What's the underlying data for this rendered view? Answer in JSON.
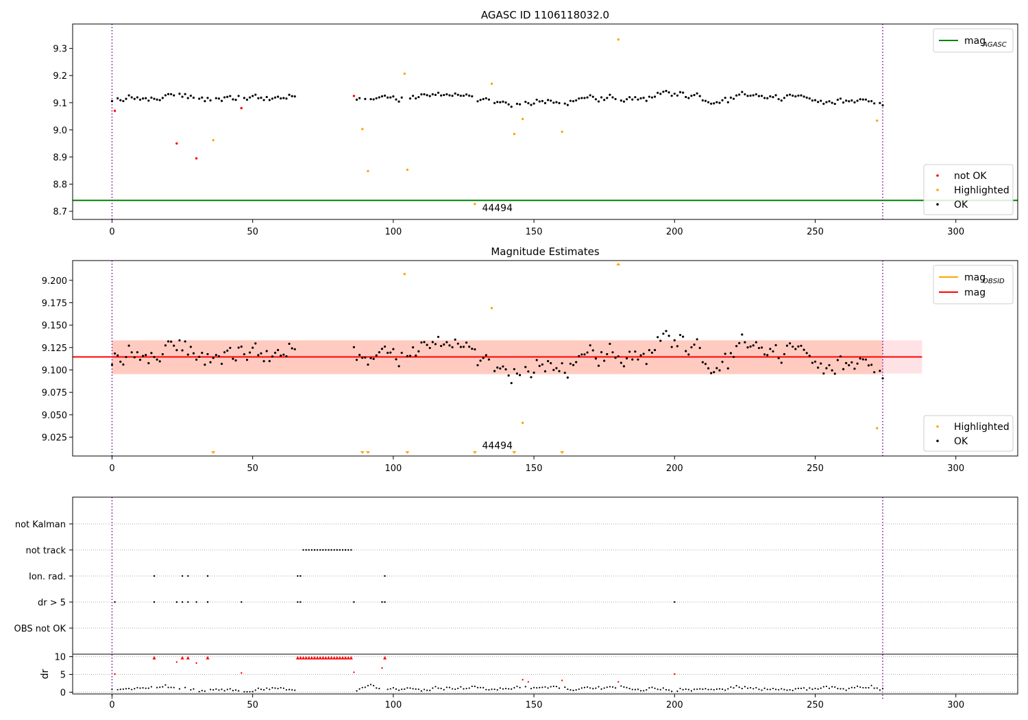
{
  "chart_data": [
    {
      "type": "scatter",
      "title": "AGASC ID 1106118032.0",
      "xlim": [
        -14,
        322
      ],
      "ylim": [
        8.67,
        9.39
      ],
      "xticks": [
        0,
        50,
        100,
        150,
        200,
        250,
        300
      ],
      "yticks": [
        8.7,
        8.8,
        8.9,
        9.0,
        9.1,
        9.2,
        9.3
      ],
      "ytick_decimals": 1,
      "vlines": [
        0,
        274
      ],
      "obsid_label": "44494",
      "obsid_label_pos": {
        "x": 137,
        "y": 8.7
      },
      "hlines": [
        {
          "name": "mag_AGASC",
          "legend": "mag",
          "legend_sub": "AGASC",
          "y": 8.74,
          "xmin": -14,
          "xmax": 322,
          "color": "#008000"
        }
      ],
      "legend_lines": [
        "mag_AGASC"
      ],
      "legend_points": [
        "not OK",
        "Highlighted",
        "OK"
      ],
      "ok_base": {
        "ranges": [
          [
            0,
            65
          ],
          [
            86,
            274
          ]
        ],
        "base": 9.115,
        "gaps": [
          [
            65,
            86
          ]
        ]
      },
      "series": [
        {
          "name": "not OK",
          "color": "#ff0000",
          "points": [
            [
              1,
              9.07
            ],
            [
              23,
              8.95
            ],
            [
              30,
              8.895
            ],
            [
              46,
              9.08
            ],
            [
              86,
              9.125
            ]
          ]
        },
        {
          "name": "Highlighted",
          "color": "#ffa500",
          "points": [
            [
              36,
              8.962
            ],
            [
              89,
              9.003
            ],
            [
              91,
              8.848
            ],
            [
              104,
              9.207
            ],
            [
              105,
              8.853
            ],
            [
              129,
              8.727
            ],
            [
              135,
              9.17
            ],
            [
              143,
              8.985
            ],
            [
              146,
              9.04
            ],
            [
              160,
              8.993
            ],
            [
              180,
              9.333
            ],
            [
              272,
              9.034
            ]
          ]
        },
        {
          "name": "OK",
          "color": "#000000",
          "points": []
        }
      ]
    },
    {
      "type": "scatter",
      "title": "Magnitude Estimates",
      "xlim": [
        -14,
        322
      ],
      "ylim": [
        9.004,
        9.222
      ],
      "xticks": [
        0,
        50,
        100,
        150,
        200,
        250,
        300
      ],
      "yticks": [
        9.025,
        9.05,
        9.075,
        9.1,
        9.125,
        9.15,
        9.175,
        9.2
      ],
      "ytick_decimals": 3,
      "vlines": [
        0,
        274
      ],
      "obsid_label": "44494",
      "obsid_label_pos": {
        "x": 137,
        "y": 9.012
      },
      "band_outer": {
        "x0": 0,
        "x1": 288,
        "y0": 9.096,
        "y1": 9.133,
        "color": "#ffb6c1"
      },
      "band_inner": {
        "x0": 0,
        "x1": 274,
        "y0": 9.095,
        "y1": 9.133,
        "color": "#ffa07a"
      },
      "hlines": [
        {
          "name": "mag_OBSID",
          "legend": "mag",
          "legend_sub": "OBSID",
          "y": 9.1145,
          "xmin": 0,
          "xmax": 274,
          "color": "#ffa500"
        },
        {
          "name": "mag",
          "legend": "mag",
          "legend_sub": "",
          "y": 9.1145,
          "xmin": -14,
          "xmax": 288,
          "color": "#ff0000"
        }
      ],
      "legend_lines": [
        "mag_OBSID",
        "mag"
      ],
      "legend_points": [
        "Highlighted",
        "OK"
      ],
      "ok_base": {
        "ranges": [
          [
            0,
            65
          ],
          [
            86,
            274
          ]
        ],
        "base": 9.115,
        "gaps": [
          [
            65,
            86
          ]
        ]
      },
      "series": [
        {
          "name": "Highlighted",
          "color": "#ffa500",
          "points": [
            [
              104,
              9.207
            ],
            [
              135,
              9.169
            ],
            [
              146,
              9.041
            ],
            [
              272,
              9.035
            ]
          ]
        },
        {
          "name": "OK",
          "color": "#000000",
          "points": []
        }
      ],
      "off_low": [
        36,
        89,
        91,
        105,
        129,
        143,
        160
      ],
      "off_high": [
        180
      ]
    },
    {
      "type": "scatter",
      "title": "",
      "xlim": [
        -14,
        322
      ],
      "categories": [
        "not Kalman",
        "not track",
        "Ion. rad.",
        "dr > 5",
        "OBS not OK"
      ],
      "vlines": [
        0,
        274
      ],
      "flags": {
        "not track": [
          68,
          69,
          70,
          71,
          72,
          73,
          74,
          75,
          76,
          77,
          78,
          79,
          80,
          81,
          82,
          83,
          84,
          85
        ],
        "Ion. rad.": [
          15,
          25,
          27,
          34,
          66,
          67,
          97
        ],
        "dr > 5": [
          1,
          15,
          23,
          25,
          27,
          30,
          34,
          46,
          66,
          67,
          86,
          96,
          97,
          200
        ],
        "not Kalman": [],
        "OBS not OK": []
      },
      "dr": {
        "ylabel": "dr",
        "yticks": [
          0,
          5,
          10
        ],
        "ylim": [
          -0.5,
          10.7
        ],
        "red_points": [
          [
            1,
            5.1
          ],
          [
            15,
            9.7
          ],
          [
            23,
            8.5
          ],
          [
            25,
            9.7
          ],
          [
            27,
            9.7
          ],
          [
            30,
            8.2
          ],
          [
            34,
            9.7
          ],
          [
            46,
            5.4
          ],
          [
            86,
            5.6
          ],
          [
            96,
            6.8
          ],
          [
            97,
            9.7
          ],
          [
            146,
            3.5
          ],
          [
            148,
            2.9
          ],
          [
            160,
            3.3
          ],
          [
            180,
            2.9
          ],
          [
            200,
            5.1
          ]
        ],
        "red_track_range": [
          66,
          85
        ],
        "red_track_y": 9.7
      }
    }
  ]
}
